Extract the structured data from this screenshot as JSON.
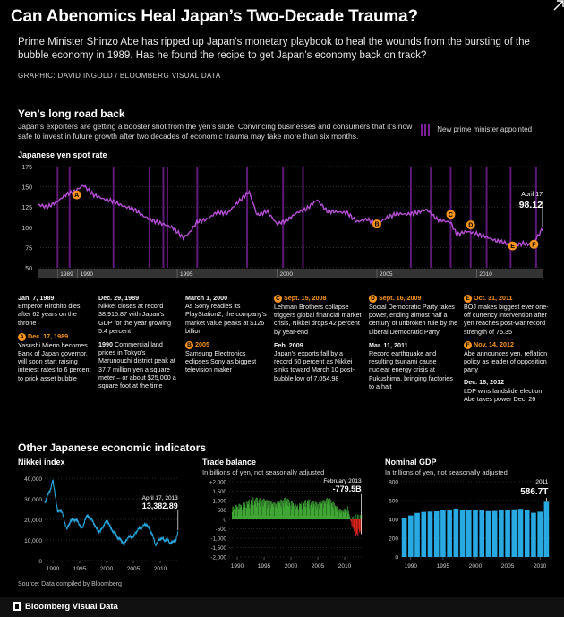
{
  "header": {
    "headline": "Can Abenomics Heal Japan’s Two-Decade Trauma?",
    "deck": "Prime Minister Shinzo Abe has ripped up Japan’s monetary playbook to heal the wounds from the bursting of the bubble economy in 1989. Has he found the recipe to get Japan’s economy back on track?",
    "credit": "GRAPHIC: DAVID INGOLD / BLOOMBERG VISUAL DATA"
  },
  "section1": {
    "title": "Yen’s long road back",
    "deck": "Japan’s exporters are getting a booster shot from the yen’s slide. Convincing businesses and consumers that it’s now safe to invest in future growth after two decades of economic trauma may take more than six months.",
    "legend": "New prime minister appointed",
    "chart_label": "Japanese yen spot rate"
  },
  "events": {
    "col1": {
      "e1_head": "Jan. 7, 1989",
      "e1_text": "Emperor Hirohito dies after 62 years on the throne",
      "e2_badge": "A",
      "e2_head": "Dec. 17, 1989",
      "e2_text": "Yasushi Mieno becomes Bank of Japan governor, will soon start raising interest rates to 6 percent to prick asset bubble"
    },
    "col2": {
      "e1_head": "Dec. 29, 1989",
      "e1_text": "Nikkei closes at record 38,915.87 with Japan’s GDP for the year growing 5.4 percent",
      "e2_head": "1990",
      "e2_text": "Commercial land prices in Tokyo’s Marunouchi district peak at 37.7 million yen a square meter – or about $25,000 a square foot at the time"
    },
    "col3": {
      "e1_head": "March 1, 2000",
      "e1_text": "As Sony readies its PlayStation2, the company’s market value peaks at $126 billion",
      "e2_badge": "B",
      "e2_head": "2005",
      "e2_text": "Samsung Electronics eclipses Sony as biggest television maker"
    },
    "col4": {
      "e1_badge": "C",
      "e1_head": "Sept. 15, 2008",
      "e1_text": "Lehman Brothers collapse triggers global financial market crisis, Nikkei drops 42 percent by year-end",
      "e2_head": "Feb. 2009",
      "e2_text": "Japan’s exports fall by a record 50 percent as Nikkei sinks toward March 10 post-bubble low of 7,054.98"
    },
    "col5": {
      "e1_badge": "D",
      "e1_head": "Sept. 16, 2009",
      "e1_text": "Social Democratic Party takes power, ending almost half a century of unbroken rule by the Liberal Democratic Party",
      "e2_head": "Mar. 11, 2011",
      "e2_text": "Record earthquake and resulting tsunami cause nuclear energy crisis at Fukushima, bringing factories to a halt"
    },
    "col6": {
      "e1_badge": "E",
      "e1_head": "Oct. 31, 2011",
      "e1_text": "BOJ makes biggest ever one-off currency intervention after yen reaches post-war record strength of 75.35",
      "e2_badge": "F",
      "e2_head": "Nov. 14, 2012",
      "e2_text": "Abe announces yen, reflation policy as leader of opposition party",
      "e3_head": "Dec. 16, 2012",
      "e3_text": "LDP wins landslide election, Abe takes power Dec. 26"
    }
  },
  "section2": {
    "title": "Other Japanese economic indicators",
    "nikkei_title": "Nikkei index",
    "trade_title": "Trade balance",
    "trade_sub": "In billions of yen, not seasonally adjusted",
    "gdp_title": "Nominal GDP",
    "gdp_sub": "In trillions of yen, not seasonally adjusted"
  },
  "footer": {
    "source": "Source: Data compiled by Bloomberg",
    "brand": "Bloomberg Visual Data"
  },
  "colors": {
    "yen_line": "#b64fd6",
    "pm_bar": "#6e1d8c",
    "badge": "#f7941d",
    "nikkei": "#29a9e1",
    "trade_pos": "#3fa535",
    "trade_neg": "#e1251b",
    "gdp": "#29a9e1",
    "grid": "#555555"
  },
  "chart_data": [
    {
      "type": "line",
      "title": "Japanese yen spot rate",
      "x_range": [
        1988.0,
        2013.3
      ],
      "ylim": [
        50,
        175
      ],
      "y_ticks": [
        50,
        75,
        100,
        125,
        150,
        175
      ],
      "x_tick_labels": [
        "1989",
        "1990",
        "1995",
        "2000",
        "2005",
        "2010"
      ],
      "x_tick_values": [
        1989,
        1990,
        1995,
        2000,
        2005,
        2010
      ],
      "x": [
        1988.0,
        1988.5,
        1989.0,
        1989.4,
        1989.9,
        1990.3,
        1990.8,
        1991.3,
        1991.8,
        1992.3,
        1992.8,
        1993.3,
        1993.8,
        1994.3,
        1994.8,
        1995.3,
        1995.6,
        1996.0,
        1996.5,
        1997.0,
        1997.5,
        1998.0,
        1998.6,
        1999.0,
        1999.5,
        2000.0,
        2000.5,
        2001.0,
        2001.5,
        2002.0,
        2002.5,
        2003.0,
        2003.5,
        2004.0,
        2004.5,
        2005.0,
        2005.5,
        2006.0,
        2006.5,
        2007.0,
        2007.5,
        2008.0,
        2008.7,
        2009.0,
        2009.5,
        2010.0,
        2010.5,
        2011.0,
        2011.3,
        2011.8,
        2012.3,
        2012.8,
        2013.0,
        2013.3
      ],
      "values": [
        128,
        125,
        132,
        140,
        145,
        152,
        140,
        135,
        132,
        126,
        123,
        114,
        108,
        104,
        99,
        87,
        93,
        107,
        110,
        119,
        117,
        130,
        144,
        115,
        120,
        104,
        109,
        118,
        123,
        134,
        120,
        119,
        118,
        107,
        110,
        104,
        112,
        117,
        116,
        118,
        122,
        110,
        106,
        91,
        95,
        92,
        88,
        83,
        82,
        77,
        80,
        79,
        87,
        98.12
      ],
      "annotation": {
        "label": "April 17",
        "value": "98.12"
      },
      "pm_changes": [
        1989.0,
        1989.6,
        1991.8,
        1993.6,
        1994.3,
        1994.5,
        1996.0,
        1998.5,
        2000.3,
        2001.3,
        2006.7,
        2007.7,
        2008.7,
        2009.7,
        2010.5,
        2011.7,
        2012.98
      ],
      "badges": [
        {
          "label": "A",
          "x": 1989.96,
          "y": 140
        },
        {
          "label": "B",
          "x": 2005.0,
          "y": 104
        },
        {
          "label": "C",
          "x": 2008.7,
          "y": 116
        },
        {
          "label": "D",
          "x": 2009.7,
          "y": 103
        },
        {
          "label": "E",
          "x": 2011.8,
          "y": 77
        },
        {
          "label": "F",
          "x": 2012.87,
          "y": 79
        }
      ]
    },
    {
      "type": "line",
      "title": "Nikkei index",
      "x_range": [
        1988.5,
        2013.5
      ],
      "ylim": [
        0,
        40000
      ],
      "y_ticks": [
        0,
        10000,
        20000,
        30000,
        40000
      ],
      "y_tick_labels": [
        "0",
        "10,000",
        "20,000",
        "30,000",
        "40,000"
      ],
      "x_tick_labels": [
        "1990",
        "1995",
        "2000",
        "2005",
        "2010"
      ],
      "x_tick_values": [
        1990,
        1995,
        2000,
        2005,
        2010
      ],
      "x": [
        1988.5,
        1989.0,
        1989.5,
        1989.99,
        1990.5,
        1990.9,
        1991.5,
        1992.0,
        1992.6,
        1993.3,
        1994.0,
        1994.5,
        1995.5,
        1996.0,
        1996.5,
        1997.5,
        1998.0,
        1998.8,
        1999.5,
        2000.2,
        2000.8,
        2001.5,
        2002.0,
        2002.8,
        2003.3,
        2004.0,
        2005.0,
        2005.8,
        2006.5,
        2007.4,
        2007.9,
        2008.5,
        2009.1,
        2009.8,
        2010.3,
        2010.8,
        2011.2,
        2011.8,
        2012.4,
        2012.9,
        2013.3
      ],
      "values": [
        28000,
        31500,
        34000,
        38916,
        31000,
        23500,
        25000,
        21000,
        15000,
        19500,
        20000,
        19500,
        15500,
        20000,
        22000,
        19000,
        16000,
        14000,
        17500,
        19500,
        15500,
        13500,
        11500,
        9500,
        8000,
        11500,
        11500,
        15000,
        16000,
        17800,
        15500,
        13000,
        7500,
        10000,
        11000,
        9500,
        10500,
        8500,
        9000,
        10000,
        13382.89
      ],
      "annotation": {
        "label": "April 17, 2013",
        "value": "13,382.89"
      }
    },
    {
      "type": "bar",
      "title": "Trade balance",
      "ylabel": "In billions of yen, not seasonally adjusted",
      "x_range": [
        1988.5,
        2013.5
      ],
      "ylim": [
        -2000,
        2000
      ],
      "y_ticks": [
        2000,
        1500,
        1000,
        500,
        0,
        -500,
        -1000,
        -1500,
        -2000
      ],
      "y_tick_labels": [
        "+2,000",
        "1,500",
        "1,000",
        "500",
        "0",
        "-500",
        "-1,000",
        "-1,500",
        "-2,000"
      ],
      "x_tick_labels": [
        "1990",
        "1995",
        "2000",
        "2005",
        "2010"
      ],
      "x_tick_values": [
        1990,
        1995,
        2000,
        2005,
        2010
      ],
      "envelope_years": [
        1989,
        1991,
        1993,
        1995,
        1997,
        1999,
        2001,
        2003,
        2005,
        2007,
        2008.5,
        2009.5,
        2010.5,
        2011.3,
        2012,
        2013.1
      ],
      "envelope_values": [
        700,
        900,
        1200,
        1100,
        900,
        1200,
        800,
        1100,
        900,
        1200,
        700,
        500,
        700,
        -400,
        -900,
        -779.5
      ],
      "annotation": {
        "label": "February 2013",
        "value": "-779.5B"
      }
    },
    {
      "type": "bar",
      "title": "Nominal GDP",
      "ylabel": "In trillions of yen, not seasonally adjusted",
      "ylim": [
        0,
        800
      ],
      "y_ticks": [
        0,
        200,
        400,
        600,
        800
      ],
      "x_tick_labels": [
        "1990",
        "1995",
        "2000",
        "2005",
        "2010"
      ],
      "x_tick_values": [
        1990,
        1995,
        2000,
        2005,
        2010
      ],
      "categories": [
        1989,
        1990,
        1991,
        1992,
        1993,
        1994,
        1995,
        1996,
        1997,
        1998,
        1999,
        2000,
        2001,
        2002,
        2003,
        2004,
        2005,
        2006,
        2007,
        2008,
        2009,
        2010,
        2011
      ],
      "values": [
        415,
        442,
        469,
        480,
        483,
        486,
        495,
        505,
        515,
        505,
        496,
        502,
        495,
        488,
        490,
        498,
        503,
        507,
        512,
        501,
        471,
        482,
        586.7
      ],
      "annotation": {
        "label": "2011",
        "value": "586.7T"
      }
    }
  ]
}
